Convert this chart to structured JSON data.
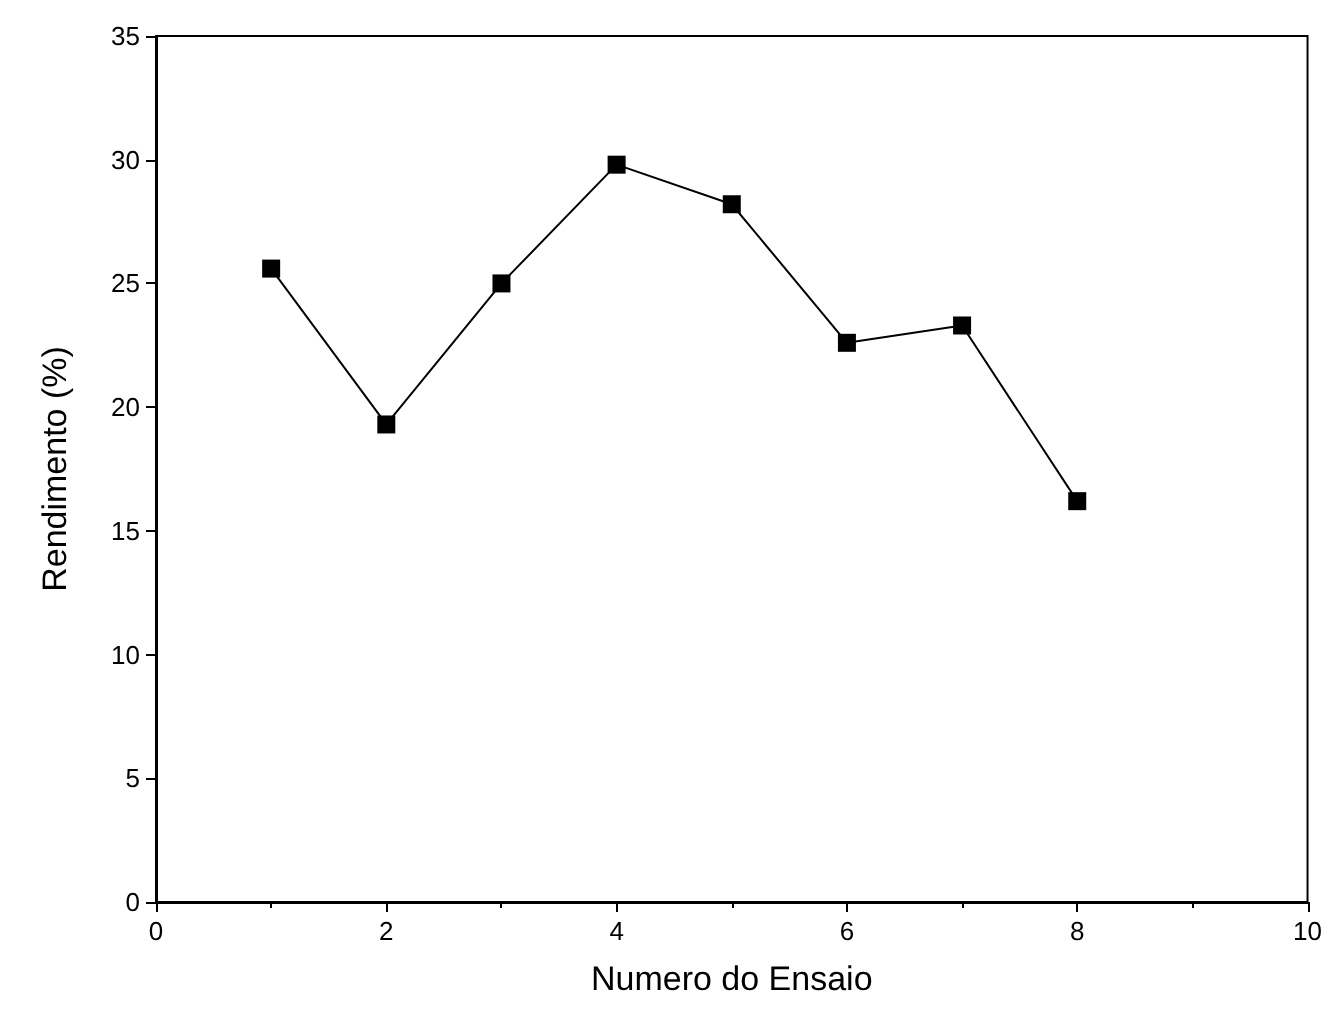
{
  "chart_data": {
    "type": "line",
    "xlabel": "Numero do Ensaio",
    "ylabel": "Rendimento (%)",
    "x": [
      1,
      2,
      3,
      4,
      5,
      6,
      7,
      8
    ],
    "series": [
      {
        "color": "#000000",
        "values": [
          25.6,
          19.3,
          25.0,
          29.8,
          28.2,
          22.6,
          23.3,
          16.2
        ]
      }
    ],
    "xlim": [
      0,
      10
    ],
    "xticks": [
      0,
      2,
      4,
      6,
      8,
      10
    ],
    "ylim": [
      0,
      35
    ],
    "yticks": [
      0,
      5,
      10,
      15,
      20,
      25,
      30,
      35
    ],
    "grid": false,
    "marker": "square",
    "line_style": "solid"
  }
}
